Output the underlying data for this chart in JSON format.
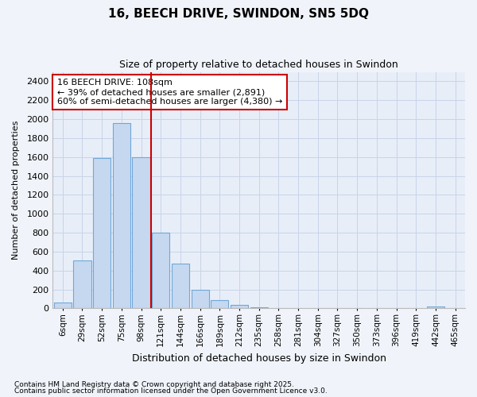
{
  "title": "16, BEECH DRIVE, SWINDON, SN5 5DQ",
  "subtitle": "Size of property relative to detached houses in Swindon",
  "xlabel": "Distribution of detached houses by size in Swindon",
  "ylabel": "Number of detached properties",
  "bar_labels": [
    "6sqm",
    "29sqm",
    "52sqm",
    "75sqm",
    "98sqm",
    "121sqm",
    "144sqm",
    "166sqm",
    "189sqm",
    "212sqm",
    "235sqm",
    "258sqm",
    "281sqm",
    "304sqm",
    "327sqm",
    "350sqm",
    "373sqm",
    "396sqm",
    "419sqm",
    "442sqm",
    "465sqm"
  ],
  "bar_values": [
    60,
    510,
    1590,
    1960,
    1600,
    800,
    470,
    195,
    90,
    40,
    15,
    0,
    0,
    0,
    0,
    0,
    0,
    0,
    0,
    20,
    0
  ],
  "bar_color": "#c5d8f0",
  "bar_edge_color": "#6fa8d8",
  "vline_label": "16 BEECH DRIVE: 108sqm",
  "annotation_line1": "← 39% of detached houses are smaller (2,891)",
  "annotation_line2": "60% of semi-detached houses are larger (4,380) →",
  "annotation_box_color": "#ffffff",
  "annotation_border_color": "#cc0000",
  "vline_color": "#cc0000",
  "vline_pos": 4.5,
  "ylim": [
    0,
    2500
  ],
  "yticks": [
    0,
    200,
    400,
    600,
    800,
    1000,
    1200,
    1400,
    1600,
    1800,
    2000,
    2200,
    2400
  ],
  "grid_color": "#c8d4e8",
  "bg_color": "#e8eef8",
  "fig_bg_color": "#f0f4fa",
  "footer1": "Contains HM Land Registry data © Crown copyright and database right 2025.",
  "footer2": "Contains public sector information licensed under the Open Government Licence v3.0."
}
